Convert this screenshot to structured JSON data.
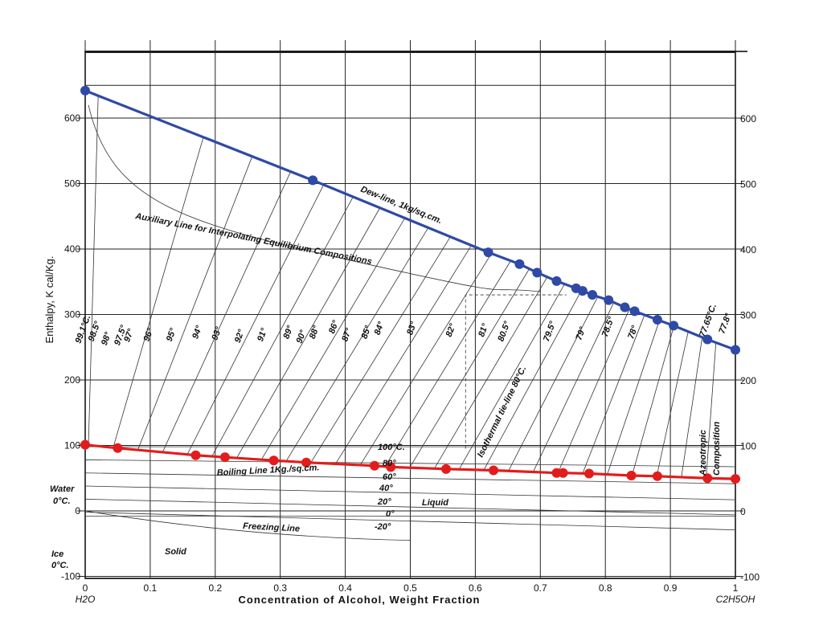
{
  "chart_data": {
    "type": "line",
    "xlabel": "Concentration of Alcohol, Weight Fraction",
    "ylabel": "Enthalpy, K cal/Kg.",
    "x_end_left": "H2O",
    "x_end_right": "C2H5OH",
    "xlim": [
      0,
      1
    ],
    "ylim": [
      -100,
      700
    ],
    "x_ticks": [
      "0",
      "0.1",
      "0.2",
      "0.3",
      "0.4",
      "0.5",
      "0.6",
      "0.7",
      "0.8",
      "0.9",
      "1"
    ],
    "y_ticks_left": [
      "-100",
      "0",
      "100",
      "200",
      "300",
      "400",
      "500",
      "600"
    ],
    "y_ticks_right": [
      "-100",
      "0",
      "100",
      "200",
      "300",
      "400",
      "500",
      "600"
    ],
    "y_tick_values": [
      -100,
      0,
      100,
      200,
      300,
      400,
      500,
      600
    ],
    "series": [
      {
        "color": "#2e4aa6",
        "points": [
          [
            0.0,
            642
          ],
          [
            0.35,
            505
          ],
          [
            0.62,
            395
          ],
          [
            0.668,
            377
          ],
          [
            0.695,
            364
          ],
          [
            0.725,
            351
          ],
          [
            0.755,
            340
          ],
          [
            0.765,
            336
          ],
          [
            0.78,
            330
          ],
          [
            0.805,
            322
          ],
          [
            0.83,
            311
          ],
          [
            0.845,
            305
          ],
          [
            0.88,
            292
          ],
          [
            0.905,
            283
          ],
          [
            0.957,
            262
          ],
          [
            1.0,
            246
          ]
        ]
      },
      {
        "color": "#e21c1c",
        "points": [
          [
            0.0,
            101
          ],
          [
            0.05,
            96
          ],
          [
            0.17,
            85
          ],
          [
            0.215,
            82
          ],
          [
            0.29,
            77
          ],
          [
            0.34,
            74
          ],
          [
            0.445,
            69
          ],
          [
            0.47,
            67
          ],
          [
            0.555,
            64
          ],
          [
            0.628,
            62
          ],
          [
            0.725,
            58
          ],
          [
            0.735,
            58
          ],
          [
            0.775,
            57
          ],
          [
            0.84,
            54
          ],
          [
            0.88,
            53
          ],
          [
            0.957,
            50
          ],
          [
            1.0,
            49
          ]
        ]
      }
    ],
    "annotations": {
      "dew_line": "Dew-line, 1kg/sq.cm.",
      "auxiliary": "Auxiliary Line for Interpolating Equilibrium Compositions",
      "boiling": "Boiling Line 1Kg./sq.cm.",
      "freezing": "Freezing Line",
      "liquid": "Liquid",
      "solid": "Solid",
      "water": "Water",
      "water_temp": "0°C.",
      "ice": "Ice",
      "ice_temp": "0°C.",
      "isothermal": "Isothermal tie-line 80°C.",
      "azeotropic_1": "Azeotropic",
      "azeotropic_2": "Composition",
      "t100": "100°C.",
      "t80": "80°",
      "t60": "60°",
      "t40": "40°",
      "t20": "20°",
      "t0": "0°",
      "tm20": "-20°",
      "tie_labels": [
        "99.1°C.",
        "98.5°",
        "98°",
        "97.5°",
        "97°",
        "96°",
        "95°",
        "94°",
        "93°",
        "92°",
        "91°",
        "89°",
        "90°",
        "88°",
        "86°",
        "87°",
        "85°",
        "84°",
        "83°",
        "82°",
        "81°",
        "80.5°",
        "79.5°",
        "79°",
        "78.5°",
        "78°",
        "77.65°C.",
        "77.8°"
      ]
    }
  }
}
